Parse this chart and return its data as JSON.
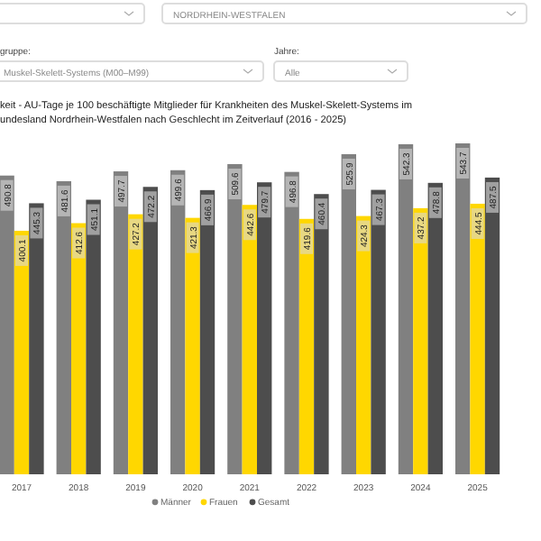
{
  "chart_data": {
    "type": "bar",
    "title": [
      "keit - AU-Tage je 100 beschäftigte Mitglieder für Krankheiten des Muskel-Skelett-Systems im",
      "undesland Nordrhein-Westfalen nach Geschlecht im Zeitverlauf (2016 - 2025)"
    ],
    "annotations": [
      "NORDRHEIN-WESTFALEN",
      "gruppe:",
      "Muskel-Skelett-Systems (M00–M99)",
      "Jahre:",
      "Alle"
    ],
    "categories": [
      "2017",
      "2018",
      "2019",
      "2020",
      "2021",
      "2022",
      "2023",
      "2024",
      "2025"
    ],
    "series": [
      {
        "name": "Männer",
        "color": "#808080",
        "values": [
          490.8,
          481.6,
          497.7,
          499.6,
          509.6,
          496.8,
          525.9,
          542.3,
          543.7
        ]
      },
      {
        "name": "Frauen",
        "color": "#ffd700",
        "values": [
          400.1,
          412.6,
          427.2,
          421.3,
          442.6,
          419.6,
          424.3,
          437.2,
          444.5
        ]
      },
      {
        "name": "Gesamt",
        "color": "#4d4d4d",
        "values": [
          445.3,
          451.1,
          472.2,
          466.9,
          479.7,
          460.4,
          467.3,
          478.8,
          487.5
        ]
      }
    ],
    "data_labels": true,
    "legend": "bottom"
  }
}
